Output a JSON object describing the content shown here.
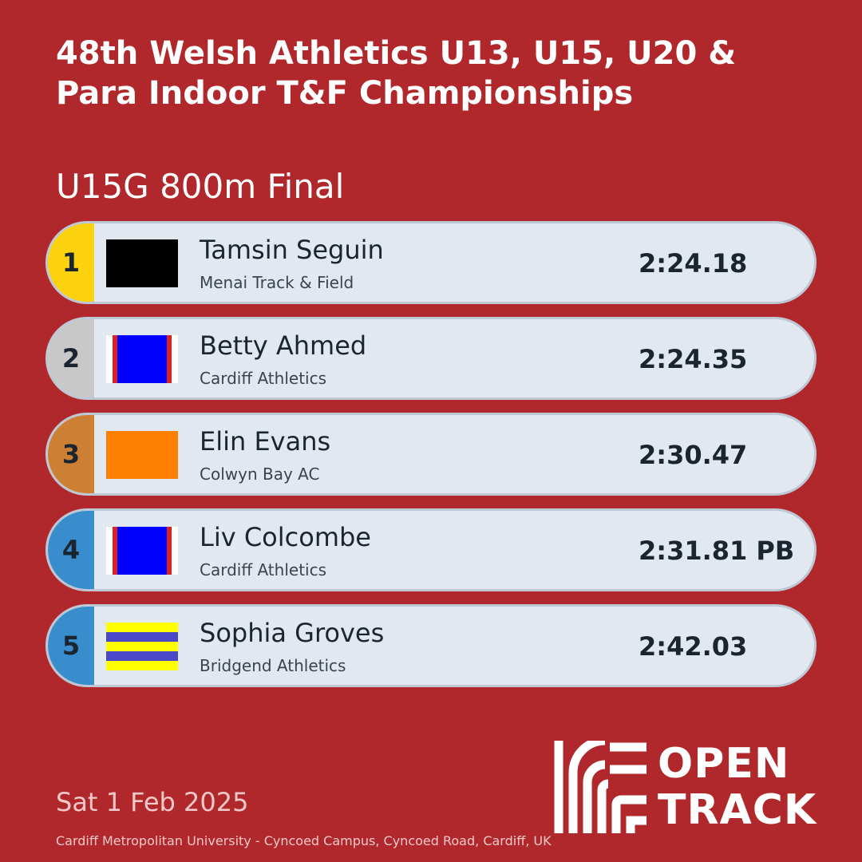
{
  "header": {
    "title_line1": "48th Welsh Athletics U13, U15, U20 &",
    "title_line2": "Para Indoor T&F Championships",
    "event": "U15G 800m Final"
  },
  "results": [
    {
      "position": "1",
      "name": "Tamsin Seguin",
      "club": "Menai Track & Field",
      "time": "2:24.18",
      "medal_color": "#fcd20e",
      "flag": "black"
    },
    {
      "position": "2",
      "name": "Betty Ahmed",
      "club": "Cardiff Athletics",
      "time": "2:24.35",
      "medal_color": "#c8c8c8",
      "flag": "cardiff"
    },
    {
      "position": "3",
      "name": "Elin Evans",
      "club": "Colwyn Bay AC",
      "time": "2:30.47",
      "medal_color": "#cd8034",
      "flag": "orange"
    },
    {
      "position": "4",
      "name": "Liv Colcombe",
      "club": "Cardiff Athletics",
      "time": "2:31.81 PB",
      "medal_color": "#3a8dcc",
      "flag": "cardiff"
    },
    {
      "position": "5",
      "name": "Sophia Groves",
      "club": "Bridgend Athletics",
      "time": "2:42.03",
      "medal_color": "#3a8dcc",
      "flag": "bridgend"
    }
  ],
  "footer": {
    "date": "Sat 1 Feb 2025",
    "venue": "Cardiff Metropolitan University - Cyncoed Campus, Cyncoed Road, Cardiff, UK"
  },
  "logo": {
    "line1": "OPEN",
    "line2": "TRACK",
    "icon": "track-lanes-icon"
  },
  "colors": {
    "background": "#b0282b",
    "card": "#e1e8f0",
    "card_border": "#bec8d4"
  }
}
